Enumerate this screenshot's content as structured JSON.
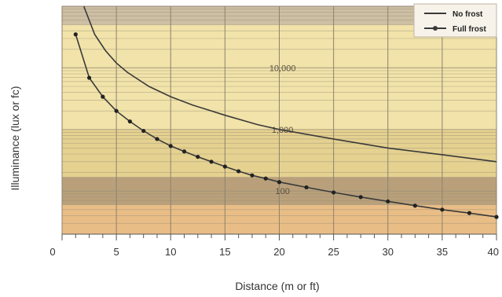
{
  "chart_data": {
    "type": "line",
    "xlabel": "Distance (m or ft)",
    "ylabel": "Illuminance (lux or fc)",
    "xlim": [
      0,
      40
    ],
    "x_ticks": [
      "0",
      "5",
      "10",
      "15",
      "20",
      "25",
      "30",
      "35",
      "40"
    ],
    "x_minor_step": 1.25,
    "y_scale": "log",
    "ylim": [
      20,
      100000
    ],
    "grid": true,
    "legend_position": "top-right",
    "reference_lines": [
      {
        "label": "10,000",
        "value": 10000
      },
      {
        "label": "1,000",
        "value": 1000
      },
      {
        "label": "100",
        "value": 100
      }
    ],
    "band_colors": {
      "top": "#cdbfa4",
      "upper": "#f1e3a9",
      "middle": "#e5d190",
      "lower": "#b9a07a",
      "bottom": "#e9bd86",
      "line": "#3a3a3a"
    },
    "series": [
      {
        "name": "No frost",
        "marker": "none",
        "x": [
          2,
          3,
          4,
          5,
          6,
          8,
          10,
          12,
          15,
          18,
          20,
          25,
          30,
          35,
          40
        ],
        "y": [
          100000,
          35000,
          19000,
          12000,
          8500,
          5000,
          3400,
          2500,
          1700,
          1200,
          1000,
          700,
          500,
          390,
          300
        ]
      },
      {
        "name": "Full frost",
        "marker": "dot",
        "x": [
          1.25,
          2.5,
          3.75,
          5,
          6.25,
          7.5,
          8.75,
          10,
          11.25,
          12.5,
          13.75,
          15,
          16.25,
          17.5,
          18.75,
          20,
          22.5,
          25,
          27.5,
          30,
          32.5,
          35,
          37.5,
          40
        ],
        "y": [
          35000,
          6900,
          3400,
          2000,
          1350,
          950,
          700,
          540,
          440,
          360,
          300,
          250,
          210,
          180,
          160,
          140,
          115,
          95,
          80,
          68,
          58,
          50,
          44,
          38
        ]
      }
    ]
  }
}
